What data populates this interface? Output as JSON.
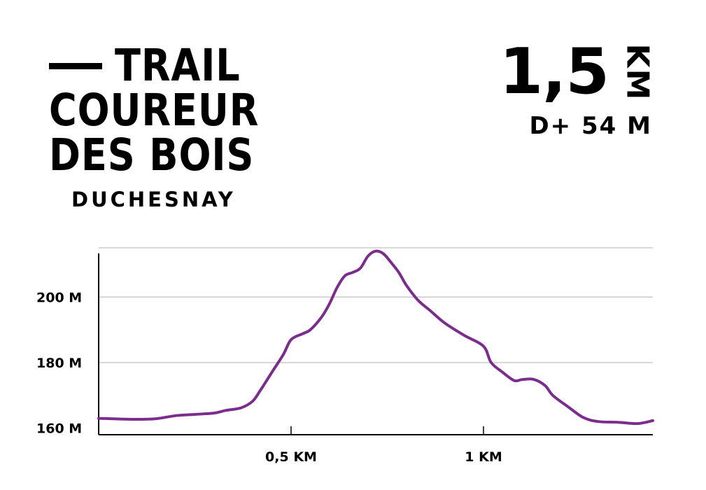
{
  "header": {
    "title_lines": [
      "TRAIL",
      "COUREUR",
      "DES BOIS"
    ],
    "subtitle": "DUCHESNAY",
    "distance_value": "1,5",
    "distance_unit": "KM",
    "elevation_gain": "D+ 54 M"
  },
  "colors": {
    "profile_line": "#7b2d8e",
    "grid": "#b0b0b0",
    "axis": "#000000",
    "text": "#000000"
  },
  "chart_data": {
    "type": "line",
    "title": "",
    "xlabel": "",
    "ylabel": "",
    "x_unit": "km",
    "y_unit": "m",
    "xlim": [
      0,
      1.44
    ],
    "ylim": [
      158,
      218
    ],
    "x_ticks": [
      {
        "value": 0.5,
        "label": "0,5 KM"
      },
      {
        "value": 1.0,
        "label": "1 KM"
      }
    ],
    "y_ticks": [
      {
        "value": 160,
        "label": "160 M"
      },
      {
        "value": 180,
        "label": "180 M"
      },
      {
        "value": 200,
        "label": "200 M"
      }
    ],
    "y_gridlines": [
      180,
      200,
      215
    ],
    "grid": true,
    "legend": "none",
    "series": [
      {
        "x": [
          0,
          0.05,
          0.1,
          0.15,
          0.2,
          0.25,
          0.3,
          0.33,
          0.37,
          0.4,
          0.42,
          0.45,
          0.48,
          0.5,
          0.53,
          0.55,
          0.58,
          0.6,
          0.62,
          0.64,
          0.66,
          0.68,
          0.7,
          0.72,
          0.74,
          0.76,
          0.78,
          0.8,
          0.83,
          0.86,
          0.9,
          0.95,
          1.0,
          1.02,
          1.05,
          1.08,
          1.1,
          1.13,
          1.16,
          1.18,
          1.22,
          1.26,
          1.3,
          1.35,
          1.4,
          1.44
        ],
        "y": [
          163,
          162.8,
          162.7,
          162.9,
          163.8,
          164.2,
          164.6,
          165.4,
          166.2,
          168.2,
          171.5,
          177,
          182.5,
          187,
          188.8,
          190,
          194,
          198,
          203,
          206.5,
          207.5,
          208.8,
          212.5,
          214,
          213.2,
          210.5,
          207.5,
          203.5,
          199,
          196,
          192,
          188.3,
          185,
          180,
          177,
          174.5,
          174.8,
          174.9,
          173,
          170,
          166.5,
          163.2,
          162,
          161.8,
          161.4,
          162.3
        ]
      }
    ]
  }
}
